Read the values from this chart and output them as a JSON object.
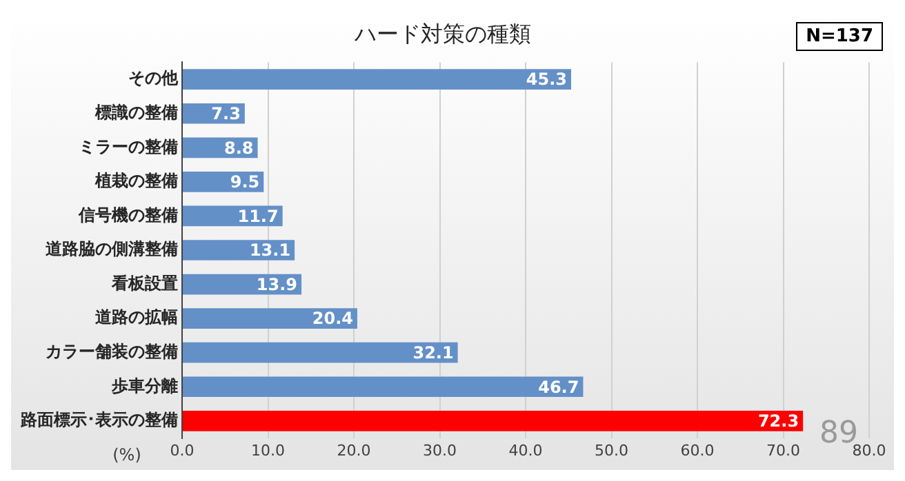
{
  "chart_data": {
    "type": "bar",
    "orientation": "horizontal",
    "title": "ハード対策の種類",
    "xlabel": "(%)",
    "categories": [
      "その他",
      "標識の整備",
      "ミラーの整備",
      "植栽の整備",
      "信号機の整備",
      "道路脇の側溝整備",
      "看板設置",
      "道路の拡幅",
      "カラー舗装の整備",
      "歩車分離",
      "路面標示･表示の整備"
    ],
    "values": [
      45.3,
      7.3,
      8.8,
      9.5,
      11.7,
      13.1,
      13.9,
      20.4,
      32.1,
      46.7,
      72.3
    ],
    "colors": [
      "#6490c8",
      "#6490c8",
      "#6490c8",
      "#6490c8",
      "#6490c8",
      "#6490c8",
      "#6490c8",
      "#6490c8",
      "#6490c8",
      "#6490c8",
      "#ff0000"
    ],
    "xlim": [
      0,
      80
    ],
    "xticks": [
      {
        "value": 0,
        "label": "0.0"
      },
      {
        "value": 10,
        "label": "10.0"
      },
      {
        "value": 20,
        "label": "20.0"
      },
      {
        "value": 30,
        "label": "30.0"
      },
      {
        "value": 40,
        "label": "40.0"
      },
      {
        "value": 50,
        "label": "50.0"
      },
      {
        "value": 60,
        "label": "60.0"
      },
      {
        "value": 70,
        "label": "70.0"
      },
      {
        "value": 80,
        "label": "80.0"
      }
    ],
    "grid": "x",
    "legend": false,
    "data_labels": true,
    "annotations": [
      "N=137",
      "89"
    ]
  }
}
